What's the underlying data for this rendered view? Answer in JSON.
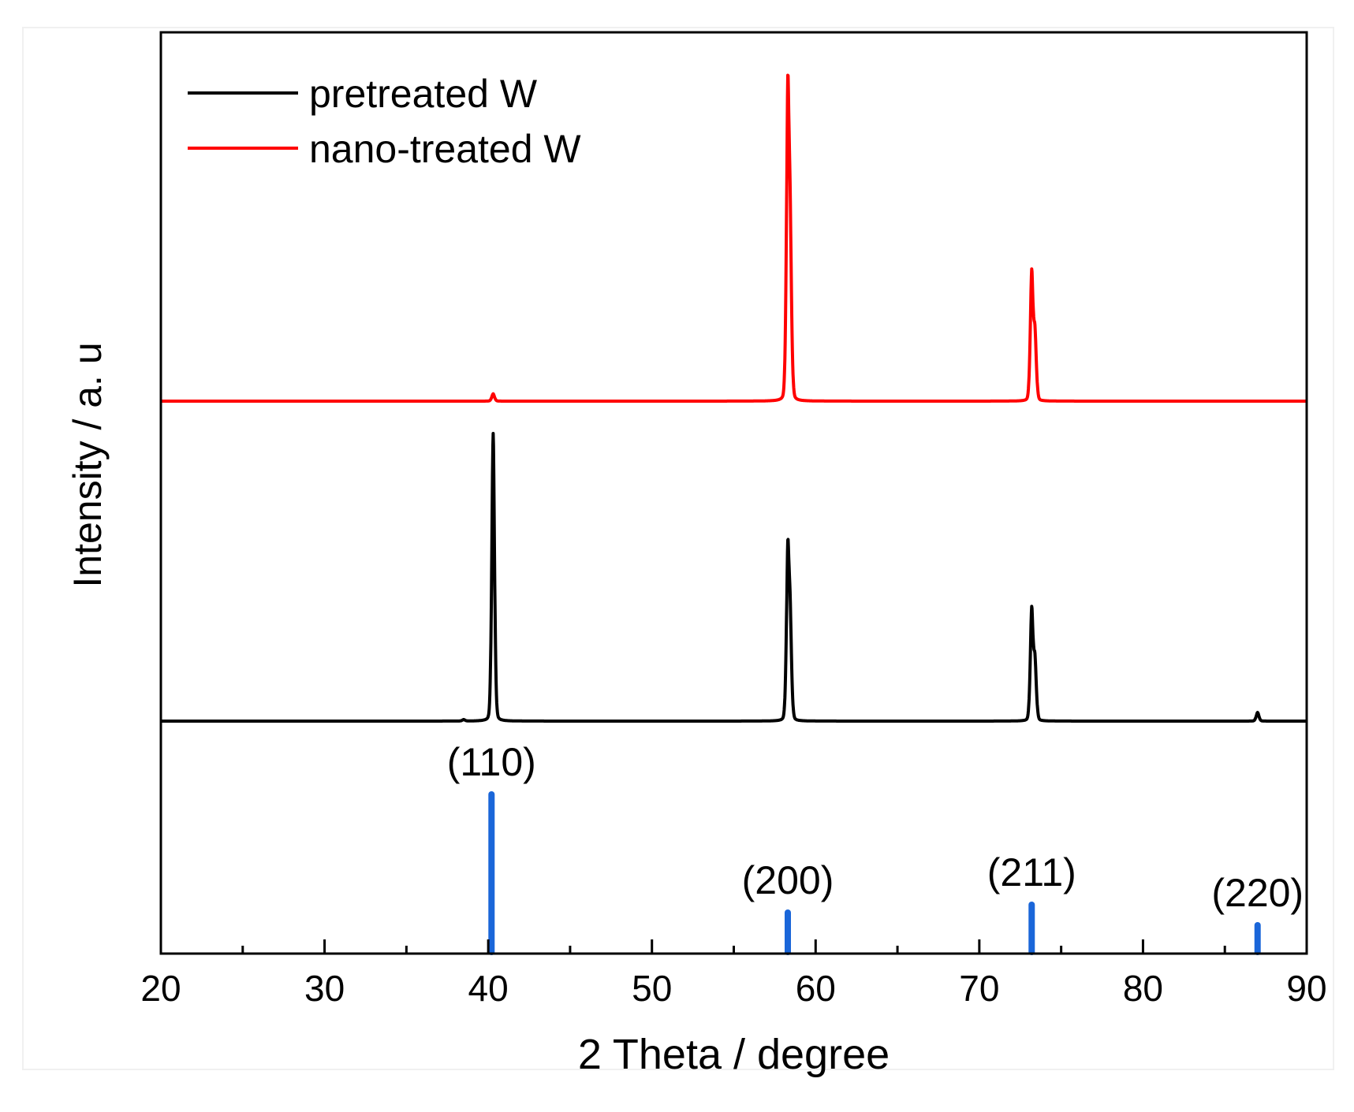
{
  "chart_data": {
    "type": "line",
    "title": "",
    "xlabel": "2 Theta / degree",
    "ylabel": "Intensity / a. u",
    "xlim": [
      20,
      90
    ],
    "x_ticks": [
      20,
      30,
      40,
      50,
      60,
      70,
      80,
      90
    ],
    "x_tick_labels": [
      "20",
      "30",
      "40",
      "50",
      "60",
      "70",
      "80",
      "90"
    ],
    "grid": false,
    "legend_position": "top-left",
    "colors": {
      "pretreated": "#000000",
      "nano": "#ff0000",
      "reference": "#1a66d9"
    },
    "series": [
      {
        "name": "pretreated W",
        "color": "#000000",
        "baseline": 0,
        "peaks": [
          {
            "two_theta": 38.5,
            "intensity": 0.5
          },
          {
            "two_theta": 40.3,
            "intensity": 100
          },
          {
            "two_theta": 58.3,
            "intensity": 56
          },
          {
            "two_theta": 58.45,
            "intensity": 30
          },
          {
            "two_theta": 73.2,
            "intensity": 38
          },
          {
            "two_theta": 73.4,
            "intensity": 20
          },
          {
            "two_theta": 87.0,
            "intensity": 3
          }
        ]
      },
      {
        "name": "nano-treated W",
        "color": "#ff0000",
        "baseline": 0,
        "peaks": [
          {
            "two_theta": 40.3,
            "intensity": 2.5
          },
          {
            "two_theta": 58.3,
            "intensity": 100
          },
          {
            "two_theta": 58.45,
            "intensity": 48
          },
          {
            "two_theta": 73.2,
            "intensity": 43
          },
          {
            "two_theta": 73.4,
            "intensity": 22
          }
        ]
      }
    ],
    "reference_lines": [
      {
        "label": "(110)",
        "two_theta": 40.2,
        "intensity": 100
      },
      {
        "label": "(200)",
        "two_theta": 58.3,
        "intensity": 25
      },
      {
        "label": "(211)",
        "two_theta": 73.2,
        "intensity": 30
      },
      {
        "label": "(220)",
        "two_theta": 87.0,
        "intensity": 17
      }
    ]
  }
}
